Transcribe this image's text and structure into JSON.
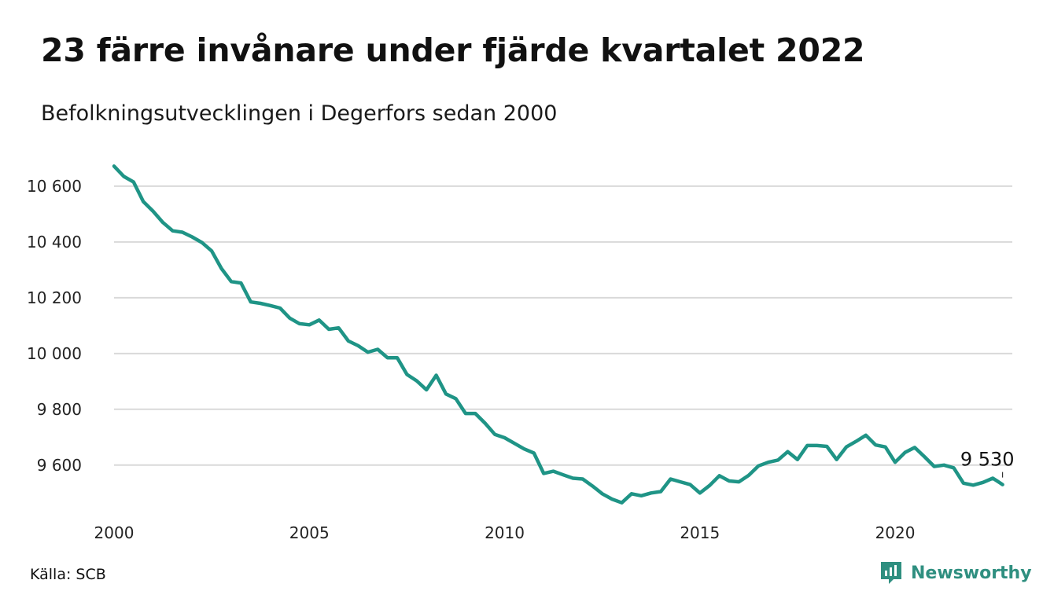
{
  "header": {
    "title": "23 färre invånare under fjärde kvartalet 2022",
    "subtitle": "Befolkningsutvecklingen i Degerfors sedan 2000"
  },
  "footer": {
    "source": "Källa: SCB",
    "brand": "Newsworthy"
  },
  "colors": {
    "line": "#1f9486",
    "grid": "#d9d9d9",
    "brand": "#2f8f80"
  },
  "chart_data": {
    "type": "line",
    "title": "23 färre invånare under fjärde kvartalet 2022",
    "subtitle": "Befolkningsutvecklingen i Degerfors sedan 2000",
    "xlabel": "",
    "ylabel": "",
    "xlim": [
      2000,
      2023
    ],
    "ylim": [
      9450,
      10690
    ],
    "x_ticks": [
      2000,
      2005,
      2010,
      2015,
      2020
    ],
    "x_tick_labels": [
      "2000",
      "2005",
      "2010",
      "2015",
      "2020"
    ],
    "y_ticks": [
      9600,
      9800,
      10000,
      10200,
      10400,
      10600
    ],
    "y_tick_labels": [
      "9 600",
      "9 800",
      "10 000",
      "10 200",
      "10 400",
      "10 600"
    ],
    "grid": "horizontal",
    "end_label": "9 530",
    "series": [
      {
        "x": [
          2000.0,
          2000.25,
          2000.5,
          2000.75,
          2001.0,
          2001.25,
          2001.5,
          2001.75,
          2002.0,
          2002.25,
          2002.5,
          2002.75,
          2003.0,
          2003.25,
          2003.5,
          2003.75,
          2004.0,
          2004.25,
          2004.5,
          2004.75,
          2005.0,
          2005.25,
          2005.5,
          2005.75,
          2006.0,
          2006.25,
          2006.5,
          2006.75,
          2007.0,
          2007.25,
          2007.5,
          2007.75,
          2008.0,
          2008.25,
          2008.5,
          2008.75,
          2009.0,
          2009.25,
          2009.5,
          2009.75,
          2010.0,
          2010.25,
          2010.5,
          2010.75,
          2011.0,
          2011.25,
          2011.5,
          2011.75,
          2012.0,
          2012.25,
          2012.5,
          2012.75,
          2013.0,
          2013.25,
          2013.5,
          2013.75,
          2014.0,
          2014.25,
          2014.5,
          2014.75,
          2015.0,
          2015.25,
          2015.5,
          2015.75,
          2016.0,
          2016.25,
          2016.5,
          2016.75,
          2017.0,
          2017.25,
          2017.5,
          2017.75,
          2018.0,
          2018.25,
          2018.5,
          2018.75,
          2019.0,
          2019.25,
          2019.5,
          2019.75,
          2020.0,
          2020.25,
          2020.5,
          2020.75,
          2021.0,
          2021.25,
          2021.5,
          2021.75,
          2022.0,
          2022.25,
          2022.5,
          2022.75
        ],
        "y": [
          10672,
          10635,
          10615,
          10545,
          10510,
          10470,
          10440,
          10435,
          10418,
          10398,
          10368,
          10305,
          10258,
          10253,
          10185,
          10180,
          10172,
          10163,
          10127,
          10107,
          10103,
          10120,
          10087,
          10092,
          10045,
          10028,
          10005,
          10015,
          9985,
          9985,
          9925,
          9902,
          9870,
          9922,
          9855,
          9838,
          9785,
          9785,
          9750,
          9710,
          9698,
          9678,
          9658,
          9643,
          9570,
          9578,
          9565,
          9553,
          9550,
          9525,
          9497,
          9478,
          9465,
          9497,
          9490,
          9500,
          9505,
          9550,
          9540,
          9530,
          9500,
          9527,
          9562,
          9543,
          9540,
          9563,
          9597,
          9610,
          9618,
          9648,
          9620,
          9670,
          9670,
          9667,
          9620,
          9665,
          9685,
          9707,
          9672,
          9665,
          9610,
          9645,
          9663,
          9630,
          9595,
          9600,
          9590,
          9535,
          9528,
          9538,
          9553,
          9530
        ]
      }
    ]
  }
}
